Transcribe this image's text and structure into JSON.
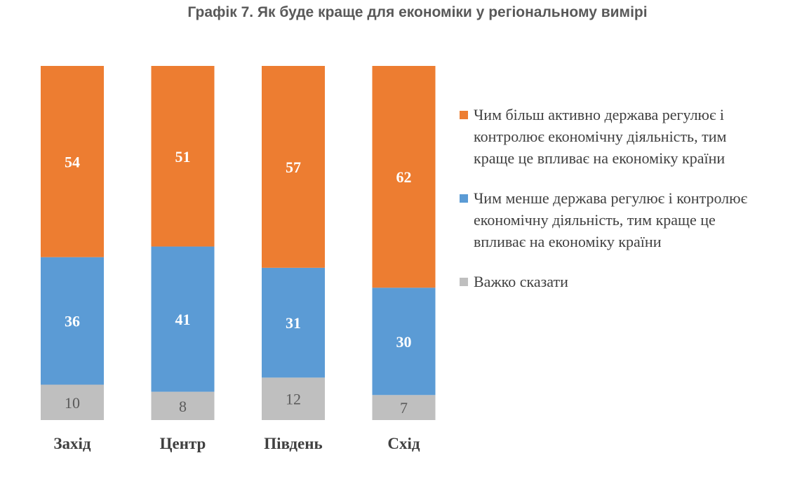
{
  "title": "Графік 7. Як буде краще для економіки у регіональному вимірі",
  "colors": {
    "orange": "#ED7D31",
    "blue": "#5B9BD5",
    "gray": "#BFBFBF"
  },
  "legend": [
    {
      "label": "Чим більш активно держава регулює і контролює економічну діяльність, тим краще це впливає на економіку країни",
      "color": "#ED7D31"
    },
    {
      "label": "Чим менше держава регулює і контролює економічну діяльність, тим краще це впливає на економіку країни",
      "color": "#5B9BD5"
    },
    {
      "label": "Важко сказати",
      "color": "#BFBFBF"
    }
  ],
  "chart_data": {
    "type": "bar",
    "stacked": true,
    "title": "Графік 7. Як буде краще для економіки у регіональному вимірі",
    "categories": [
      "Захід",
      "Центр",
      "Південь",
      "Схід"
    ],
    "series": [
      {
        "name": "Важко сказати",
        "values": [
          10,
          8,
          12,
          7
        ],
        "color": "#BFBFBF"
      },
      {
        "name": "Чим менше держава регулює і контролює економічну діяльність, тим краще це впливає на економіку країни",
        "values": [
          36,
          41,
          31,
          30
        ],
        "color": "#5B9BD5"
      },
      {
        "name": "Чим більш активно держава регулює і контролює економічну діяльність, тим краще це впливає на економіку країни",
        "values": [
          54,
          51,
          57,
          62
        ],
        "color": "#ED7D31"
      }
    ],
    "legend_position": "right",
    "grid": false
  }
}
